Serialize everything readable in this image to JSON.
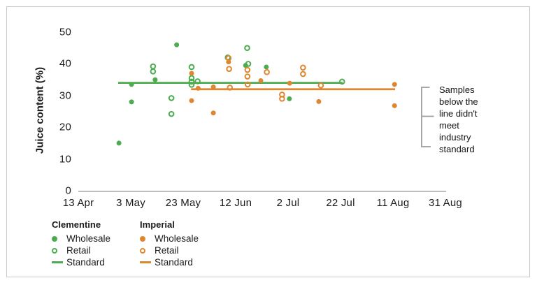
{
  "colors": {
    "clementine": "#4CAC4F",
    "imperial": "#DE8730",
    "axis": "#A8A8A8",
    "bracket": "#9D9D9D",
    "text": "#1B1B1B"
  },
  "ylabel": "Juice content (%)",
  "annotation": {
    "text": "Samples below the line didn't meet industry standard"
  },
  "legend": {
    "groups": [
      {
        "title": "Clementine",
        "items": [
          {
            "label": "Wholesale",
            "marker": "filled-dot"
          },
          {
            "label": "Retail",
            "marker": "open-circle"
          },
          {
            "label": "Standard",
            "marker": "line"
          }
        ]
      },
      {
        "title": "Imperial",
        "items": [
          {
            "label": "Wholesale",
            "marker": "filled-dot"
          },
          {
            "label": "Retail",
            "marker": "open-circle"
          },
          {
            "label": "Standard",
            "marker": "line"
          }
        ]
      }
    ]
  },
  "chart_data": {
    "type": "scatter",
    "title": "",
    "xlabel": "",
    "ylabel": "Juice content (%)",
    "grid": false,
    "legend_position": "bottom-left",
    "x_axis": {
      "unit": "date",
      "tick_labels": [
        "13 Apr",
        "3 May",
        "23 May",
        "12 Jun",
        "2 Jul",
        "22 Jul",
        "11 Aug",
        "31 Aug"
      ],
      "tick_days_from_start": [
        0,
        20,
        40,
        60,
        80,
        100,
        120,
        140
      ],
      "range_days": [
        0,
        140
      ]
    },
    "y_axis": {
      "ticks": [
        0,
        10,
        20,
        30,
        40,
        50
      ],
      "range": [
        0,
        50
      ]
    },
    "series": [
      {
        "name": "Clementine Wholesale",
        "marker": "filled",
        "color": "#4CAC4F",
        "points": [
          {
            "day": 15.5,
            "value": 15
          },
          {
            "day": 20.3,
            "value": 33.5
          },
          {
            "day": 20.3,
            "value": 28
          },
          {
            "day": 29.3,
            "value": 35
          },
          {
            "day": 37.5,
            "value": 46
          },
          {
            "day": 63.8,
            "value": 39.5
          },
          {
            "day": 71.7,
            "value": 39
          },
          {
            "day": 80.5,
            "value": 29
          }
        ]
      },
      {
        "name": "Clementine Retail",
        "marker": "open",
        "color": "#4CAC4F",
        "points": [
          {
            "day": 28.5,
            "value": 39.2
          },
          {
            "day": 28.5,
            "value": 37.6
          },
          {
            "day": 35.5,
            "value": 29.2
          },
          {
            "day": 35.5,
            "value": 24.2
          },
          {
            "day": 43.2,
            "value": 39
          },
          {
            "day": 43.2,
            "value": 35.5
          },
          {
            "day": 43.2,
            "value": 34.4
          },
          {
            "day": 43.2,
            "value": 33.4
          },
          {
            "day": 45.5,
            "value": 34.5
          },
          {
            "day": 57.0,
            "value": 42
          },
          {
            "day": 64.4,
            "value": 45
          },
          {
            "day": 64.8,
            "value": 40
          },
          {
            "day": 100.6,
            "value": 34.4
          }
        ]
      },
      {
        "name": "Imperial Wholesale",
        "marker": "filled",
        "color": "#DE8730",
        "points": [
          {
            "day": 43.2,
            "value": 37
          },
          {
            "day": 43.2,
            "value": 28.4
          },
          {
            "day": 45.7,
            "value": 32.3
          },
          {
            "day": 51.5,
            "value": 32.7
          },
          {
            "day": 51.5,
            "value": 24.5
          },
          {
            "day": 57.3,
            "value": 40.6
          },
          {
            "day": 69.6,
            "value": 34.7
          },
          {
            "day": 80.6,
            "value": 33.9
          },
          {
            "day": 91.7,
            "value": 28.1
          },
          {
            "day": 120.6,
            "value": 33.5
          },
          {
            "day": 120.6,
            "value": 26.8
          }
        ]
      },
      {
        "name": "Imperial Retail",
        "marker": "open",
        "color": "#DE8730",
        "points": [
          {
            "day": 57.3,
            "value": 41.8
          },
          {
            "day": 57.5,
            "value": 38.4
          },
          {
            "day": 57.8,
            "value": 32.5
          },
          {
            "day": 64.5,
            "value": 38.1
          },
          {
            "day": 64.5,
            "value": 36
          },
          {
            "day": 64.6,
            "value": 33.5
          },
          {
            "day": 71.9,
            "value": 37.4
          },
          {
            "day": 77.7,
            "value": 30.3
          },
          {
            "day": 77.7,
            "value": 29
          },
          {
            "day": 85.7,
            "value": 38.8
          },
          {
            "day": 85.7,
            "value": 36.8
          },
          {
            "day": 92.5,
            "value": 33.2
          }
        ]
      }
    ],
    "standard_lines": [
      {
        "name": "Clementine Standard",
        "color": "#4CAC4F",
        "value": 34,
        "day_start": 15.2,
        "day_end": 100.8
      },
      {
        "name": "Imperial Standard",
        "color": "#DE8730",
        "value": 32,
        "day_start": 43.0,
        "day_end": 120.8
      }
    ],
    "annotation": "Samples below the line didn't meet industry standard"
  }
}
